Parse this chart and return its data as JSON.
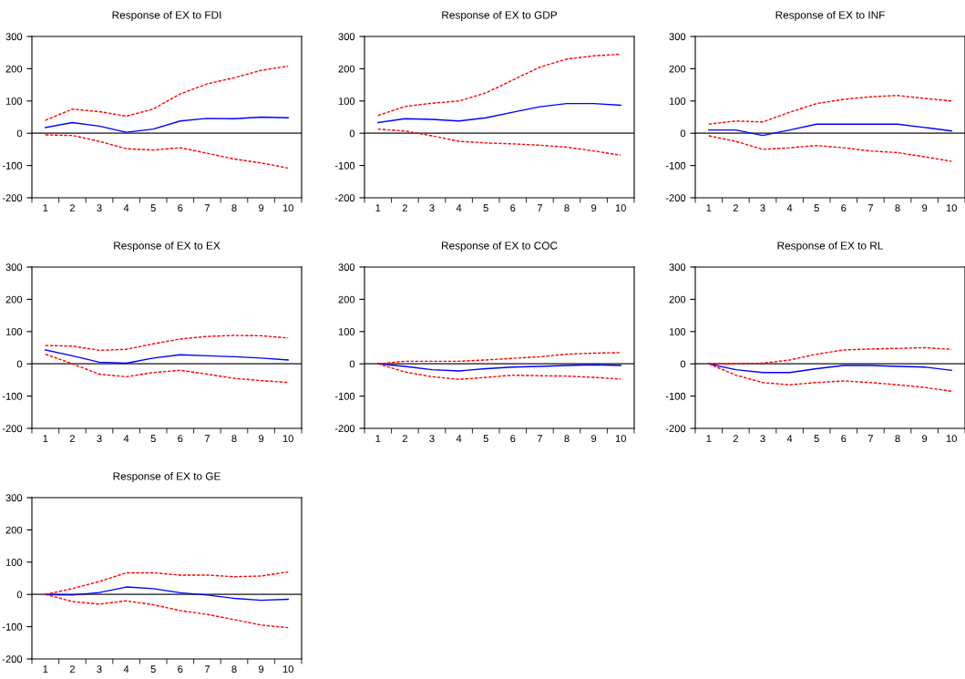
{
  "chart_data": [
    {
      "type": "line",
      "title": "Response of EX to FDI",
      "categories": [
        "1",
        "2",
        "3",
        "4",
        "5",
        "6",
        "7",
        "8",
        "9",
        "10"
      ],
      "ylim": [
        -200,
        300
      ],
      "yticks": [
        -200,
        -100,
        0,
        100,
        200,
        300
      ],
      "grid": false,
      "ref_lines": [
        {
          "axis": "y",
          "value": 0,
          "color": "#555555"
        }
      ],
      "series": [
        {
          "color": "#0000ff",
          "line_style": "solid",
          "values": [
            18,
            33,
            22,
            3,
            13,
            38,
            46,
            45,
            50,
            48
          ]
        },
        {
          "color": "#ff0000",
          "line_style": "dashed",
          "values": [
            40,
            75,
            67,
            53,
            75,
            122,
            153,
            172,
            195,
            208
          ]
        },
        {
          "color": "#ff0000",
          "line_style": "dashed",
          "values": [
            -5,
            -7,
            -25,
            -48,
            -52,
            -45,
            -62,
            -80,
            -92,
            -108
          ]
        }
      ]
    },
    {
      "type": "line",
      "title": "Response of EX to GDP",
      "categories": [
        "1",
        "2",
        "3",
        "4",
        "5",
        "6",
        "7",
        "8",
        "9",
        "10"
      ],
      "ylim": [
        -200,
        300
      ],
      "yticks": [
        -200,
        -100,
        0,
        100,
        200,
        300
      ],
      "grid": false,
      "ref_lines": [
        {
          "axis": "y",
          "value": 0,
          "color": "#555555"
        }
      ],
      "series": [
        {
          "color": "#0000ff",
          "line_style": "solid",
          "values": [
            33,
            45,
            43,
            38,
            48,
            65,
            82,
            92,
            92,
            87
          ]
        },
        {
          "color": "#ff0000",
          "line_style": "dashed",
          "values": [
            55,
            83,
            93,
            100,
            125,
            165,
            205,
            230,
            240,
            245
          ]
        },
        {
          "color": "#ff0000",
          "line_style": "dashed",
          "values": [
            13,
            7,
            -8,
            -25,
            -30,
            -33,
            -37,
            -43,
            -55,
            -68
          ]
        }
      ]
    },
    {
      "type": "line",
      "title": "Response of EX to INF",
      "categories": [
        "1",
        "2",
        "3",
        "4",
        "5",
        "6",
        "7",
        "8",
        "9",
        "10"
      ],
      "ylim": [
        -200,
        300
      ],
      "yticks": [
        -200,
        -100,
        0,
        100,
        200,
        300
      ],
      "grid": false,
      "ref_lines": [
        {
          "axis": "y",
          "value": 0,
          "color": "#555555"
        }
      ],
      "series": [
        {
          "color": "#0000ff",
          "line_style": "solid",
          "values": [
            10,
            10,
            -7,
            10,
            28,
            28,
            28,
            28,
            18,
            7
          ]
        },
        {
          "color": "#ff0000",
          "line_style": "dashed",
          "values": [
            28,
            38,
            35,
            65,
            92,
            105,
            113,
            117,
            108,
            100
          ]
        },
        {
          "color": "#ff0000",
          "line_style": "dashed",
          "values": [
            -8,
            -25,
            -50,
            -45,
            -38,
            -45,
            -55,
            -60,
            -73,
            -87
          ]
        }
      ]
    },
    {
      "type": "line",
      "title": "Response of EX to EX",
      "categories": [
        "1",
        "2",
        "3",
        "4",
        "5",
        "6",
        "7",
        "8",
        "9",
        "10"
      ],
      "ylim": [
        -200,
        300
      ],
      "yticks": [
        -200,
        -100,
        0,
        100,
        200,
        300
      ],
      "grid": false,
      "ref_lines": [
        {
          "axis": "y",
          "value": 0,
          "color": "#555555"
        }
      ],
      "series": [
        {
          "color": "#0000ff",
          "line_style": "solid",
          "values": [
            43,
            25,
            5,
            2,
            18,
            28,
            25,
            22,
            18,
            12
          ]
        },
        {
          "color": "#ff0000",
          "line_style": "dashed",
          "values": [
            57,
            55,
            42,
            45,
            62,
            77,
            85,
            88,
            87,
            80
          ]
        },
        {
          "color": "#ff0000",
          "line_style": "dashed",
          "values": [
            30,
            0,
            -32,
            -40,
            -27,
            -20,
            -32,
            -45,
            -52,
            -58
          ]
        }
      ]
    },
    {
      "type": "line",
      "title": "Response of EX to COC",
      "categories": [
        "1",
        "2",
        "3",
        "4",
        "5",
        "6",
        "7",
        "8",
        "9",
        "10"
      ],
      "ylim": [
        -200,
        300
      ],
      "yticks": [
        -200,
        -100,
        0,
        100,
        200,
        300
      ],
      "grid": false,
      "ref_lines": [
        {
          "axis": "y",
          "value": 0,
          "color": "#555555"
        }
      ],
      "series": [
        {
          "color": "#0000ff",
          "line_style": "solid",
          "values": [
            0,
            -8,
            -18,
            -22,
            -15,
            -10,
            -8,
            -5,
            -3,
            -5
          ]
        },
        {
          "color": "#ff0000",
          "line_style": "dashed",
          "values": [
            0,
            8,
            8,
            8,
            12,
            17,
            22,
            30,
            33,
            35
          ]
        },
        {
          "color": "#ff0000",
          "line_style": "dashed",
          "values": [
            0,
            -25,
            -40,
            -48,
            -42,
            -35,
            -37,
            -38,
            -42,
            -47
          ]
        }
      ]
    },
    {
      "type": "line",
      "title": "Response of EX to RL",
      "categories": [
        "1",
        "2",
        "3",
        "4",
        "5",
        "6",
        "7",
        "8",
        "9",
        "10"
      ],
      "ylim": [
        -200,
        300
      ],
      "yticks": [
        -200,
        -100,
        0,
        100,
        200,
        300
      ],
      "grid": false,
      "ref_lines": [
        {
          "axis": "y",
          "value": 0,
          "color": "#555555"
        }
      ],
      "series": [
        {
          "color": "#0000ff",
          "line_style": "solid",
          "values": [
            0,
            -18,
            -27,
            -27,
            -15,
            -5,
            -5,
            -8,
            -10,
            -20
          ]
        },
        {
          "color": "#ff0000",
          "line_style": "dashed",
          "values": [
            0,
            0,
            2,
            12,
            30,
            43,
            46,
            48,
            50,
            45
          ]
        },
        {
          "color": "#ff0000",
          "line_style": "dashed",
          "values": [
            0,
            -35,
            -58,
            -65,
            -58,
            -53,
            -58,
            -65,
            -73,
            -85
          ]
        }
      ]
    },
    {
      "type": "line",
      "title": "Response of EX to GE",
      "categories": [
        "1",
        "2",
        "3",
        "4",
        "5",
        "6",
        "7",
        "8",
        "9",
        "10"
      ],
      "ylim": [
        -200,
        300
      ],
      "yticks": [
        -200,
        -100,
        0,
        100,
        200,
        300
      ],
      "grid": false,
      "ref_lines": [
        {
          "axis": "y",
          "value": 0,
          "color": "#555555"
        }
      ],
      "series": [
        {
          "color": "#0000ff",
          "line_style": "solid",
          "values": [
            0,
            -2,
            6,
            23,
            18,
            5,
            -2,
            -12,
            -18,
            -15
          ]
        },
        {
          "color": "#ff0000",
          "line_style": "dashed",
          "values": [
            0,
            18,
            40,
            67,
            67,
            60,
            60,
            55,
            57,
            70
          ]
        },
        {
          "color": "#ff0000",
          "line_style": "dashed",
          "values": [
            0,
            -22,
            -30,
            -20,
            -32,
            -50,
            -62,
            -78,
            -95,
            -103
          ]
        }
      ]
    }
  ]
}
